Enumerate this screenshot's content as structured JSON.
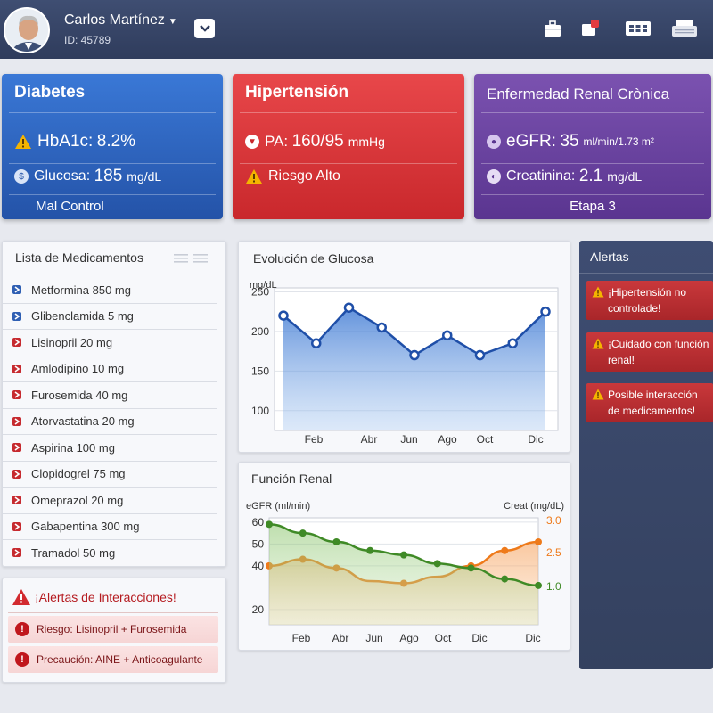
{
  "header": {
    "user_name": "Carlos Martínez",
    "user_id": "ID: 45789"
  },
  "conditions": {
    "diabetes": {
      "title": "Diabetes",
      "hba1c_label": "HbA1c:",
      "hba1c_value": "8.2%",
      "glucose_label": "Glucosa:",
      "glucose_value": "185",
      "glucose_unit": "mg/dL",
      "status": "Mal Control"
    },
    "hypertension": {
      "title": "Hipertensión",
      "pa_label": "PA:",
      "pa_value": "160/95",
      "pa_unit": "mmHg",
      "risk": "Riesgo Alto"
    },
    "renal": {
      "title": "Enfermedad Renal Crònica",
      "egfr_label": "eGFR:",
      "egfr_value": "35",
      "egfr_unit": "ml/min/1.73 m²",
      "creat_label": "Creatinina:",
      "creat_value": "2.1",
      "creat_unit": "mg/dL",
      "stage": "Etapa 3"
    }
  },
  "medications": {
    "title": "Lista de Medicamentos",
    "items": [
      {
        "name": "Metformina 850 mg",
        "color": "#2f5fb3"
      },
      {
        "name": "Glibenclamida 5 mg",
        "color": "#2f5fb3"
      },
      {
        "name": "Lisinopril 20 mg",
        "color": "#c62a2f"
      },
      {
        "name": "Amlodipino 10 mg",
        "color": "#c62a2f"
      },
      {
        "name": "Furosemida 40 mg",
        "color": "#c62a2f"
      },
      {
        "name": "Atorvastatina 20 mg",
        "color": "#c62a2f"
      },
      {
        "name": "Aspirina 100 mg",
        "color": "#c62a2f"
      },
      {
        "name": "Clopidogrel 75 mg",
        "color": "#c62a2f"
      },
      {
        "name": "Omeprazol 20 mg",
        "color": "#c62a2f"
      },
      {
        "name": "Gabapentina 300 mg",
        "color": "#c62a2f"
      },
      {
        "name": "Tramadol 50 mg",
        "color": "#c62a2f"
      }
    ]
  },
  "interactions": {
    "title": "¡Alertas de Interacciones!",
    "items": [
      "Riesgo: Lisinopril + Furosemida",
      "Precaución: AINE + Anticoagulante"
    ]
  },
  "alerts": {
    "title": "Alertas",
    "items": [
      "¡Hipertensión no controlade!",
      "¡Cuidado con función renal!",
      "Posible interacción de medicamentos!"
    ]
  },
  "chart_data": [
    {
      "type": "area",
      "title": "Evolución de Glucosa",
      "ylabel": "mg/dL",
      "ylim": [
        75,
        255
      ],
      "yticks": [
        "250",
        "200",
        "150",
        "100"
      ],
      "x_tick_labels": [
        "Feb",
        "Abr",
        "Jun",
        "Ago",
        "Oct",
        "Dic"
      ],
      "series": [
        {
          "name": "Glucosa",
          "values": [
            220,
            185,
            230,
            205,
            170,
            195,
            170,
            185,
            225
          ]
        }
      ],
      "color": "#1f4fa8"
    },
    {
      "type": "area",
      "title": "Función Renal",
      "ylabel_left": "eGFR (ml/min)",
      "ylabel_right": "Creat (mg/dL)",
      "ylim_left": [
        13,
        62
      ],
      "yticks_left": [
        "60",
        "50",
        "40",
        "20"
      ],
      "yticks_right": [
        "3.0",
        "2.5",
        "1.0"
      ],
      "x_tick_labels": [
        "Feb",
        "Abr",
        "Jun",
        "Ago",
        "Oct",
        "Dic",
        "Dic"
      ],
      "series": [
        {
          "name": "eGFR",
          "axis": "left",
          "values": [
            59,
            55,
            51,
            47,
            45,
            41,
            39,
            34,
            31
          ],
          "color": "#3f8a26"
        },
        {
          "name": "Creatinina",
          "axis": "left",
          "values": [
            40,
            43,
            39,
            33,
            32,
            35,
            40,
            47,
            51
          ],
          "color": "#ee7a1a"
        }
      ]
    }
  ]
}
